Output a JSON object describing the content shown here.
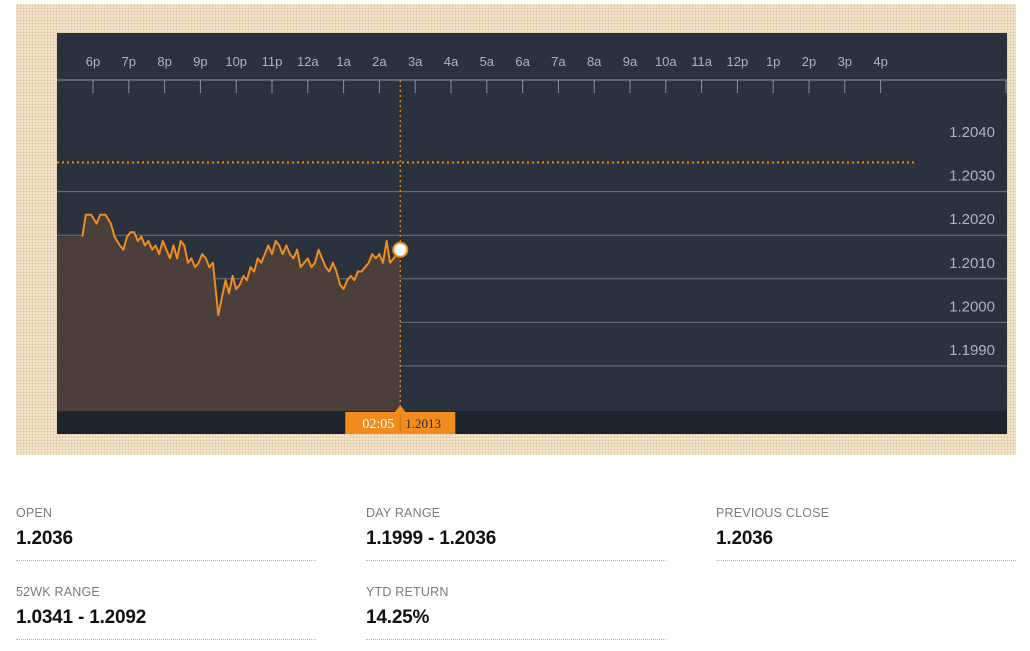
{
  "chart_data": {
    "type": "area",
    "x_ticks": [
      "6p",
      "7p",
      "8p",
      "9p",
      "10p",
      "11p",
      "12a",
      "1a",
      "2a",
      "3a",
      "4a",
      "5a",
      "6a",
      "7a",
      "8a",
      "9a",
      "10a",
      "11a",
      "12p",
      "1p",
      "2p",
      "3p",
      "4p"
    ],
    "y_ticks": [
      "1.2040",
      "1.2030",
      "1.2020",
      "1.2010",
      "1.2000",
      "1.1990"
    ],
    "ylim": [
      1.1976,
      1.2048
    ],
    "reference_line": 1.2033,
    "series": [
      {
        "values": [
          [
            17.7,
            1.2016
          ],
          [
            17.8,
            1.2021
          ],
          [
            17.95,
            1.2021
          ],
          [
            18.1,
            1.2019
          ],
          [
            18.2,
            1.2021
          ],
          [
            18.35,
            1.2021
          ],
          [
            18.5,
            1.2019
          ],
          [
            18.6,
            1.2016
          ],
          [
            18.75,
            1.2014
          ],
          [
            18.85,
            1.2013
          ],
          [
            18.95,
            1.2016
          ],
          [
            19.05,
            1.2017
          ],
          [
            19.15,
            1.2017
          ],
          [
            19.25,
            1.2015
          ],
          [
            19.35,
            1.2016
          ],
          [
            19.45,
            1.2014
          ],
          [
            19.55,
            1.2015
          ],
          [
            19.65,
            1.2013
          ],
          [
            19.75,
            1.2014
          ],
          [
            19.85,
            1.2012
          ],
          [
            19.95,
            1.2015
          ],
          [
            20.05,
            1.2013
          ],
          [
            20.15,
            1.2011
          ],
          [
            20.25,
            1.2014
          ],
          [
            20.35,
            1.2011
          ],
          [
            20.45,
            1.2015
          ],
          [
            20.55,
            1.2014
          ],
          [
            20.65,
            1.201
          ],
          [
            20.75,
            1.2011
          ],
          [
            20.85,
            1.2009
          ],
          [
            20.95,
            1.201
          ],
          [
            21.05,
            1.2012
          ],
          [
            21.15,
            1.2011
          ],
          [
            21.25,
            1.2009
          ],
          [
            21.35,
            1.201
          ],
          [
            21.45,
            1.2002
          ],
          [
            21.5,
            1.1998
          ],
          [
            21.55,
            1.2
          ],
          [
            21.6,
            1.2002
          ],
          [
            21.7,
            1.2006
          ],
          [
            21.8,
            1.2003
          ],
          [
            21.9,
            1.2007
          ],
          [
            22.0,
            1.2004
          ],
          [
            22.1,
            1.2005
          ],
          [
            22.2,
            1.2007
          ],
          [
            22.3,
            1.2006
          ],
          [
            22.4,
            1.2009
          ],
          [
            22.5,
            1.2008
          ],
          [
            22.6,
            1.2011
          ],
          [
            22.7,
            1.201
          ],
          [
            22.8,
            1.2012
          ],
          [
            22.9,
            1.2014
          ],
          [
            23.0,
            1.2012
          ],
          [
            23.1,
            1.2015
          ],
          [
            23.2,
            1.2014
          ],
          [
            23.3,
            1.2012
          ],
          [
            23.4,
            1.2014
          ],
          [
            23.5,
            1.2012
          ],
          [
            23.6,
            1.2011
          ],
          [
            23.7,
            1.2013
          ],
          [
            23.8,
            1.2009
          ],
          [
            23.9,
            1.201
          ],
          [
            24.0,
            1.2011
          ],
          [
            24.1,
            1.2009
          ],
          [
            24.2,
            1.201
          ],
          [
            24.3,
            1.2013
          ],
          [
            24.4,
            1.2011
          ],
          [
            24.5,
            1.2009
          ],
          [
            24.6,
            1.2008
          ],
          [
            24.7,
            1.201
          ],
          [
            24.8,
            1.2008
          ],
          [
            24.9,
            1.2005
          ],
          [
            25.0,
            1.2004
          ],
          [
            25.1,
            1.2006
          ],
          [
            25.2,
            1.2007
          ],
          [
            25.3,
            1.2006
          ],
          [
            25.4,
            1.2008
          ],
          [
            25.5,
            1.2008
          ],
          [
            25.6,
            1.2009
          ],
          [
            25.7,
            1.201
          ],
          [
            25.8,
            1.2012
          ],
          [
            25.9,
            1.2011
          ],
          [
            26.0,
            1.2012
          ],
          [
            26.1,
            1.201
          ],
          [
            26.2,
            1.2015
          ],
          [
            26.3,
            1.201
          ],
          [
            26.4,
            1.2011
          ],
          [
            26.5833,
            1.2013
          ]
        ]
      }
    ],
    "crosshair": {
      "time": "02:05",
      "value": "1.2013"
    }
  },
  "stats": [
    {
      "label": "OPEN",
      "value": "1.2036"
    },
    {
      "label": "DAY RANGE",
      "value": "1.1999 - 1.2036"
    },
    {
      "label": "PREVIOUS CLOSE",
      "value": "1.2036"
    },
    {
      "label": "52WK RANGE",
      "value": "1.0341 - 1.2092"
    },
    {
      "label": "YTD RETURN",
      "value": "14.25%"
    }
  ],
  "colors": {
    "line": "#f28c1e",
    "area": "#4a3f3a",
    "background": "#2a323d",
    "grid": "#6b737d",
    "axis_text": "#aeb4bb",
    "tooltip": "#f28c1e"
  }
}
